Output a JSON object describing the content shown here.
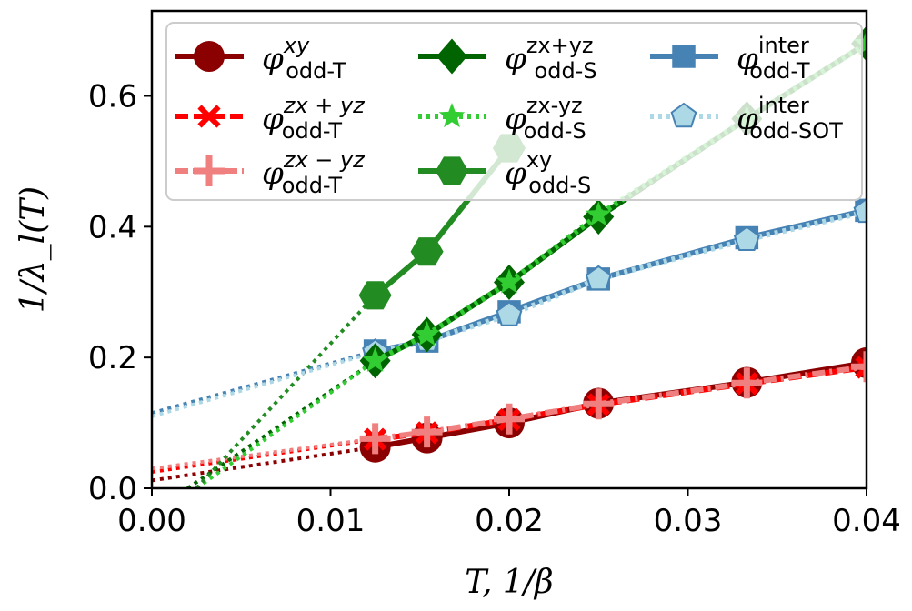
{
  "chart_data": {
    "type": "line",
    "xlabel": "T,  1/β",
    "ylabel": "1/λ_l(T)",
    "xlim": [
      0.0,
      0.04
    ],
    "ylim": [
      0.0,
      0.73
    ],
    "xticks": [
      "0.00",
      "0.01",
      "0.02",
      "0.03",
      "0.04"
    ],
    "xtick_values": [
      0.0,
      0.01,
      0.02,
      0.03,
      0.04
    ],
    "yticks": [
      "0.0",
      "0.2",
      "0.4",
      "0.6"
    ],
    "ytick_values": [
      0.0,
      0.2,
      0.4,
      0.6
    ],
    "legend_position": "top",
    "series": [
      {
        "id": "odd-T-xy",
        "base": "φ",
        "sup": "xy",
        "sub": "odd-T",
        "color": "#8b0000",
        "marker": "circle",
        "line": "solid",
        "x": [
          0.0125,
          0.0154,
          0.02,
          0.025,
          0.0333,
          0.04
        ],
        "y": [
          0.063,
          0.077,
          0.1,
          0.13,
          0.162,
          0.192
        ],
        "extrap_x": [
          0.0,
          0.0125
        ],
        "extrap_y": [
          0.012,
          0.063
        ]
      },
      {
        "id": "odd-T-zx+yz",
        "base": "φ",
        "sup": "zx + yz",
        "sub": "odd-T",
        "color": "#ff0000",
        "marker": "x",
        "line": "dashed",
        "x": [
          0.0125,
          0.0154,
          0.02,
          0.025,
          0.0333,
          0.04
        ],
        "y": [
          0.075,
          0.085,
          0.105,
          0.128,
          0.16,
          0.185
        ],
        "extrap_x": [
          0.0,
          0.0125
        ],
        "extrap_y": [
          0.025,
          0.075
        ]
      },
      {
        "id": "odd-T-zx-yz",
        "base": "φ",
        "sup": "zx − yz",
        "sub": "odd-T",
        "color": "#f08080",
        "marker": "plus",
        "line": "dashdot",
        "x": [
          0.0125,
          0.0154,
          0.02,
          0.025,
          0.0333,
          0.04
        ],
        "y": [
          0.076,
          0.086,
          0.106,
          0.129,
          0.161,
          0.186
        ],
        "extrap_x": [
          0.0,
          0.0125
        ],
        "extrap_y": [
          0.03,
          0.076
        ]
      },
      {
        "id": "odd-S-zx+yz",
        "base": "φ",
        "sup": "zx+yz",
        "sub": "odd-S",
        "color": "#006400",
        "marker": "diamond",
        "line": "solid",
        "x": [
          0.0125,
          0.0154,
          0.02,
          0.025,
          0.0333,
          0.04
        ],
        "y": [
          0.195,
          0.235,
          0.315,
          0.415,
          0.565,
          0.68
        ],
        "extrap_x": [
          0.002,
          0.0125
        ],
        "extrap_y": [
          0.0,
          0.195
        ]
      },
      {
        "id": "odd-S-zx-yz",
        "base": "φ",
        "sup": "zx-yz",
        "sub": "odd-S",
        "color": "#32cd32",
        "marker": "star",
        "line": "dotted",
        "x": [
          0.0125,
          0.0154,
          0.02,
          0.025,
          0.0333,
          0.04
        ],
        "y": [
          0.195,
          0.235,
          0.315,
          0.418,
          0.565,
          0.68
        ],
        "extrap_x": [
          0.0025,
          0.0125
        ],
        "extrap_y": [
          0.0,
          0.195
        ]
      },
      {
        "id": "odd-S-xy",
        "base": "φ",
        "sup": "xy",
        "sub": "odd-S",
        "color": "#228b22",
        "marker": "hexagon",
        "line": "solid",
        "x": [
          0.0125,
          0.0154,
          0.02
        ],
        "y": [
          0.295,
          0.362,
          0.52
        ],
        "extrap_x": [
          0.0025,
          0.0125
        ],
        "extrap_y": [
          0.0,
          0.295
        ]
      },
      {
        "id": "odd-T-inter",
        "base": "φ",
        "sup": "inter",
        "sub": "odd-T",
        "color": "#4682b4",
        "marker": "square",
        "line": "solid",
        "x": [
          0.0125,
          0.0154,
          0.02,
          0.025,
          0.0333,
          0.04
        ],
        "y": [
          0.21,
          0.225,
          0.27,
          0.32,
          0.383,
          0.425
        ],
        "extrap_x": [
          0.0,
          0.0125
        ],
        "extrap_y": [
          0.115,
          0.21
        ]
      },
      {
        "id": "odd-SOT-inter",
        "base": "φ",
        "sup": "inter",
        "sub": "odd-SOT",
        "color": "#add8e6",
        "marker": "pentagon",
        "line": "dotted",
        "x": [
          0.0125,
          0.0154,
          0.02,
          0.025,
          0.0333,
          0.04
        ],
        "y": [
          0.208,
          0.226,
          0.265,
          0.32,
          0.38,
          0.423
        ],
        "extrap_x": [
          0.0,
          0.0125
        ],
        "extrap_y": [
          0.11,
          0.208
        ]
      }
    ]
  }
}
